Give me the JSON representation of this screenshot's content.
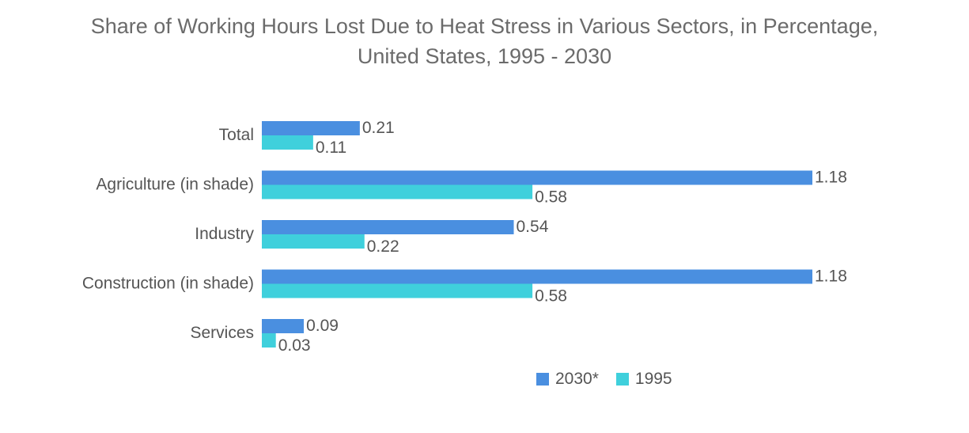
{
  "chart_data": {
    "type": "bar",
    "orientation": "horizontal",
    "title_line1": "Share of Working Hours Lost Due to Heat Stress in Various Sectors, in Percentage,",
    "title_line2": "United States, 1995 - 2030",
    "categories": [
      "Total",
      "Agriculture (in shade)",
      "Industry",
      "Construction (in shade)",
      "Services"
    ],
    "series": [
      {
        "name": "2030*",
        "color": "#4a8fe0",
        "values": [
          0.21,
          1.18,
          0.54,
          1.18,
          0.09
        ]
      },
      {
        "name": "1995",
        "color": "#3fd0dc",
        "values": [
          0.11,
          0.58,
          0.22,
          0.58,
          0.03
        ]
      }
    ],
    "xlim": [
      0,
      1.18
    ],
    "grid": false,
    "legend_position": "bottom-center"
  }
}
